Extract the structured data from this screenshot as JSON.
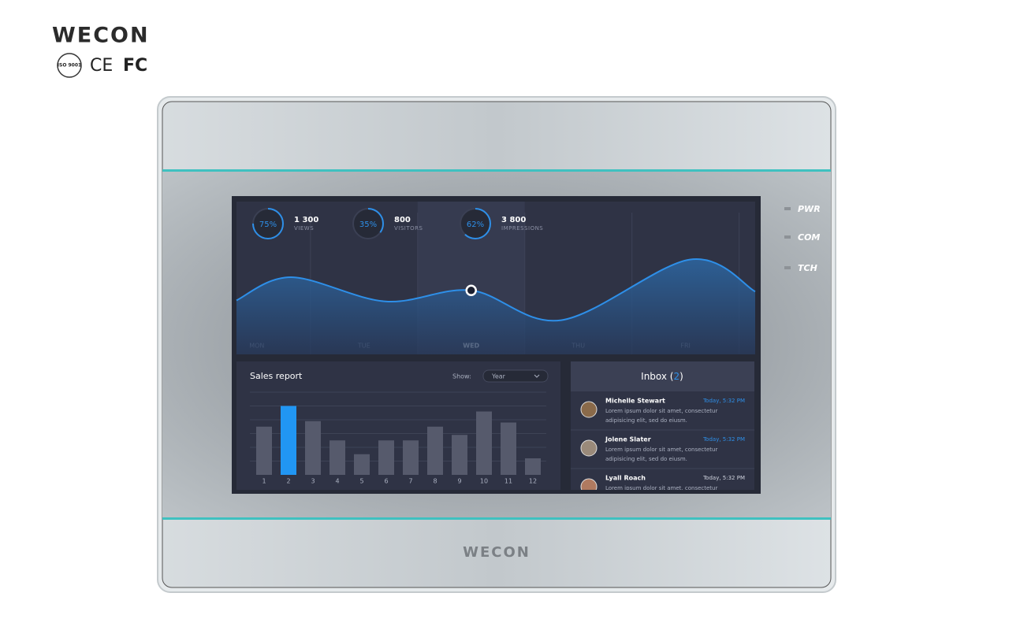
{
  "brand": {
    "logo": "WECON",
    "certifications": [
      "ISO 9001",
      "CE",
      "FC"
    ]
  },
  "device": {
    "logo": "WECON",
    "indicators": [
      "PWR",
      "COM",
      "TCH"
    ]
  },
  "stats": [
    {
      "percent": 75,
      "percent_label": "75%",
      "value": 1300,
      "value_label": "1 300",
      "label": "VIEWS"
    },
    {
      "percent": 35,
      "percent_label": "35%",
      "value": 800,
      "value_label": "800",
      "label": "VISITORS"
    },
    {
      "percent": 62,
      "percent_label": "62%",
      "value": 3800,
      "value_label": "3 800",
      "label": "IMPRESSIONS"
    }
  ],
  "chart_data": [
    {
      "type": "area",
      "x": [
        -0.19,
        0.32,
        1.2,
        2.0,
        2.84,
        4.04,
        4.65
      ],
      "values": [
        49,
        70,
        48,
        58,
        31,
        86,
        57
      ],
      "xlim": [
        -0.19,
        4.65
      ],
      "ylim": [
        0,
        100
      ],
      "xticks": [
        {
          "value": 0,
          "label": "MON"
        },
        {
          "value": 1,
          "label": "TUE"
        },
        {
          "value": 2,
          "label": "WED"
        },
        {
          "value": 3,
          "label": "THU"
        },
        {
          "value": 4,
          "label": "FRI"
        }
      ],
      "highlight_index": 3,
      "color": "#2e8fe8"
    },
    {
      "type": "bar",
      "title": "Sales report",
      "filter_label": "Show:",
      "filter_value": "Year",
      "categories": [
        "1",
        "2",
        "3",
        "4",
        "5",
        "6",
        "7",
        "8",
        "9",
        "10",
        "11",
        "12"
      ],
      "values": [
        3.5,
        5.0,
        3.9,
        2.5,
        1.5,
        2.5,
        2.5,
        3.5,
        2.9,
        4.6,
        3.8,
        1.2
      ],
      "ylim": [
        0,
        6
      ],
      "bar_colors": [
        "#565a6c",
        "#2196f3",
        "#565a6c",
        "#565a6c",
        "#565a6c",
        "#565a6c",
        "#565a6c",
        "#565a6c",
        "#565a6c",
        "#565a6c",
        "#565a6c",
        "#565a6c"
      ]
    }
  ],
  "inbox": {
    "title_parts": [
      "Inbox (",
      "2",
      ")"
    ],
    "messages": [
      {
        "name": "Michelle Stewart",
        "time": "Today, 5:32 PM",
        "lines": [
          "Lorem ipsum dolor sit amet, consectetur",
          "adipisicing elit, sed do eiusm."
        ]
      },
      {
        "name": "Jolene Slater",
        "time": "Today, 5:32 PM",
        "lines": [
          "Lorem ipsum dolor sit amet, consectetur",
          "adipisicing elit, sed do eiusm."
        ]
      },
      {
        "name": "Lyall Roach",
        "time": "Today, 5:32 PM",
        "lines": [
          "Lorem ipsum dolor sit amet, consectetur"
        ]
      }
    ]
  }
}
